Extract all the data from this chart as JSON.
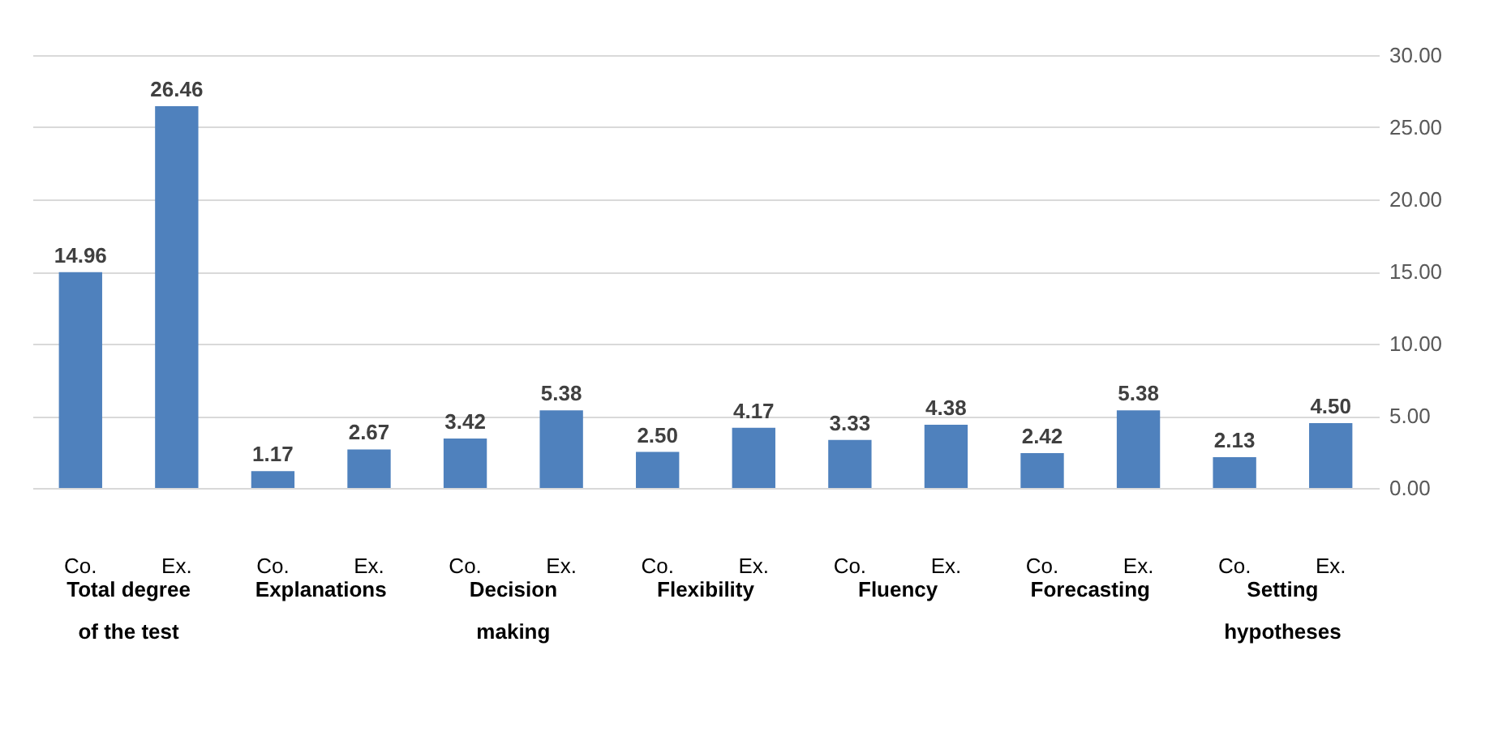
{
  "chart_data": {
    "type": "bar",
    "categories": [
      "Co.",
      "Ex.",
      "Co.",
      "Ex.",
      "Co.",
      "Ex.",
      "Co.",
      "Ex.",
      "Co.",
      "Ex.",
      "Co.",
      "Ex.",
      "Co.",
      "Ex."
    ],
    "values": [
      14.96,
      26.46,
      1.17,
      2.67,
      3.42,
      5.38,
      2.5,
      4.17,
      3.33,
      4.38,
      2.42,
      5.38,
      2.13,
      4.5
    ],
    "value_labels": [
      "14.96",
      "26.46",
      "1.17",
      "2.67",
      "3.42",
      "5.38",
      "2.50",
      "4.17",
      "3.33",
      "4.38",
      "2.42",
      "5.38",
      "2.13",
      "4.50"
    ],
    "color": "#4f81bd",
    "ylim": [
      0,
      30
    ],
    "yticks": [
      {
        "value": 0,
        "label": "0.00"
      },
      {
        "value": 5,
        "label": "5.00"
      },
      {
        "value": 10,
        "label": "10.00"
      },
      {
        "value": 15,
        "label": "15.00"
      },
      {
        "value": 20,
        "label": "20.00"
      },
      {
        "value": 25,
        "label": "25.00"
      },
      {
        "value": 30,
        "label": "30.00"
      }
    ],
    "grid": "y",
    "annotations": [
      "Total degree of the test",
      "Explanations",
      "Decision making",
      "Flexibility",
      "Fluency",
      "Forecasting",
      "Setting hypotheses"
    ]
  }
}
